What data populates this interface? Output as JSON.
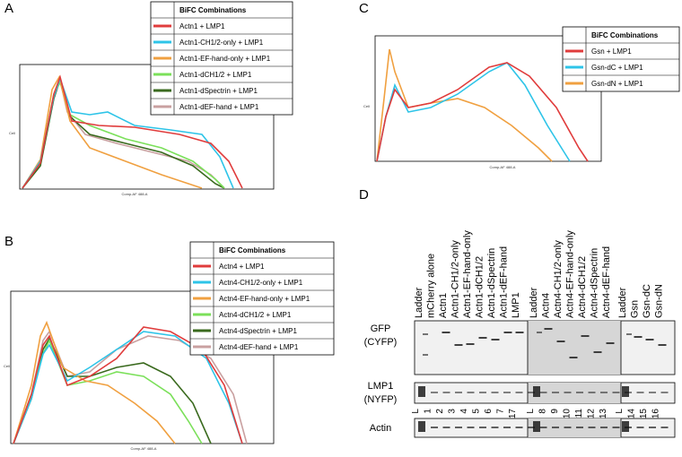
{
  "panels": [
    {
      "label": "A",
      "legend_title": "BiFC Combinations",
      "entries": [
        "Actn1 + LMP1",
        "Actn1-CH1/2-only + LMP1",
        "Actn1-EF-hand-only + LMP1",
        "Actn1-dCH1/2 + LMP1",
        "Actn1-dSpectrin + LMP1",
        "Actn1-dEF-hand + LMP1"
      ]
    },
    {
      "label": "B",
      "legend_title": "BiFC Combinations",
      "entries": [
        "Actn4 + LMP1",
        "Actn4-CH1/2-only + LMP1",
        "Actn4-EF-hand-only + LMP1",
        "Actn4-dCH1/2 + LMP1",
        "Actn4-dSpectrin + LMP1",
        "Actn4-dEF-hand + LMP1"
      ]
    },
    {
      "label": "C",
      "legend_title": "BiFC Combinations",
      "entries": [
        "Gsn + LMP1",
        "Gsn-dC + LMP1",
        "Gsn-dN + LMP1"
      ]
    }
  ],
  "axis_labels": {
    "x": "Comp-AF 488-A",
    "y": "Cell"
  },
  "blot": {
    "label": "D",
    "lane_groups": [
      [
        "Ladder",
        "mCherry alone",
        "Actn1",
        "Actn1-CH1/2-only",
        "Actn1-EF-hand-only",
        "Actn1-dCH1/2",
        "Actn1-dSpectrin",
        "Actn1-dEF-hand",
        "LMP1"
      ],
      [
        "Ladder",
        "Actn4",
        "Actn4-CH1/2-only",
        "Actn4-EF-hand-only",
        "Actn4-dCH1/2",
        "Actn4-dSpectrin",
        "Actn4-dEF-hand"
      ],
      [
        "Ladder",
        "Gsn",
        "Gsn-dC",
        "Gsn-dN"
      ]
    ],
    "lane_numbers": [
      [
        "L",
        "1",
        "2",
        "3",
        "4",
        "5",
        "6",
        "7",
        "17"
      ],
      [
        "L",
        "8",
        "9",
        "10",
        "11",
        "12",
        "13"
      ],
      [
        "L",
        "14",
        "15",
        "16"
      ]
    ],
    "rows": [
      [
        "GFP",
        "(CYFP)"
      ],
      [
        "LMP1",
        "(NYFP)"
      ],
      [
        "Actin"
      ]
    ]
  }
}
